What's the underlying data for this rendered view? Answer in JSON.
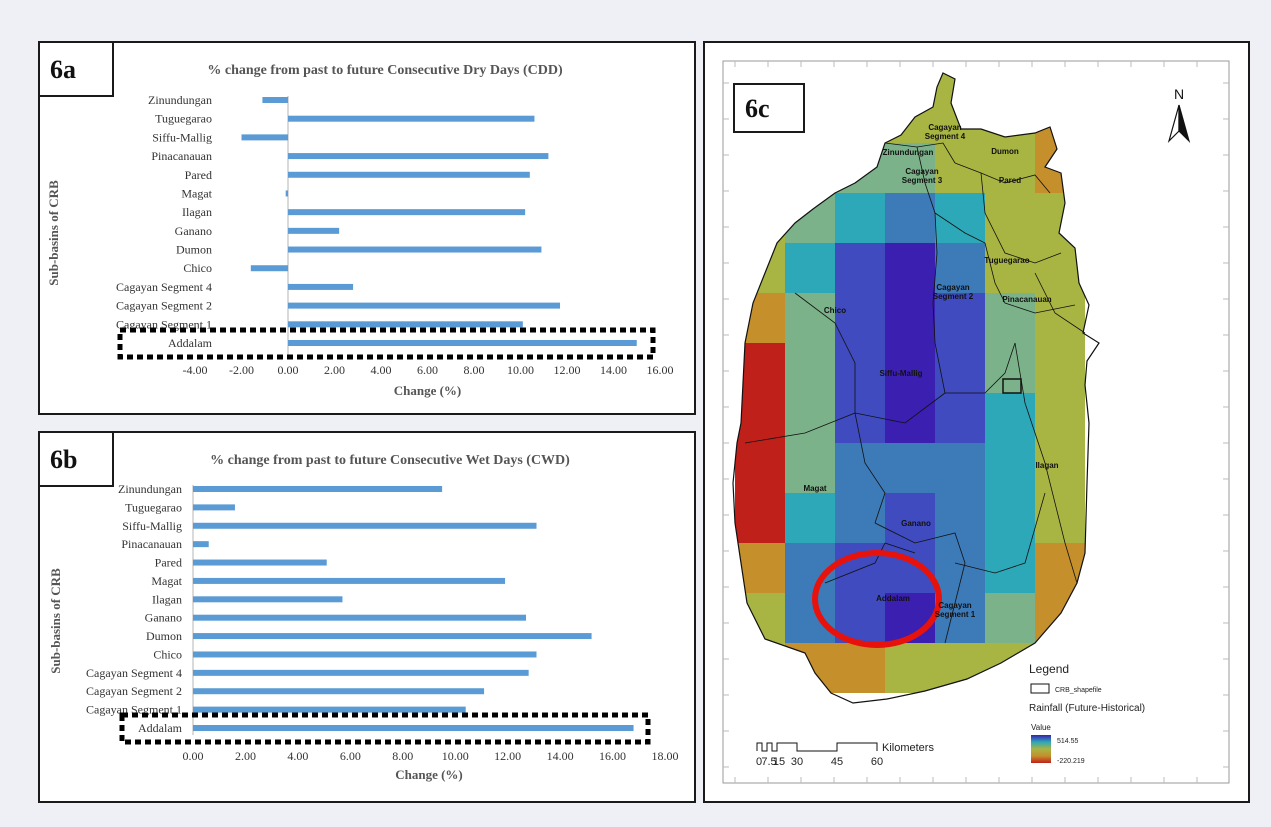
{
  "panels": {
    "a": {
      "label": "6a"
    },
    "b": {
      "label": "6b"
    },
    "c": {
      "label": "6c"
    }
  },
  "chart_data": [
    {
      "id": "6a",
      "type": "bar",
      "orientation": "horizontal",
      "title": "% change from past to future  Consecutive Dry Days (CDD)",
      "xlabel": "Change (%)",
      "ylabel": "Sub-basins of CRB",
      "xlim": [
        -4,
        16
      ],
      "xticks": [
        "-4.00",
        "-2.00",
        "0.00",
        "2.00",
        "4.00",
        "6.00",
        "8.00",
        "10.00",
        "12.00",
        "14.00",
        "16.00"
      ],
      "categories": [
        "Zinundungan",
        "Tuguegarao",
        "Siffu-Mallig",
        "Pinacanauan",
        "Pared",
        "Magat",
        "Ilagan",
        "Ganano",
        "Dumon",
        "Chico",
        "Cagayan Segment 4",
        "Cagayan Segment 2",
        "Cagayan Segment 1",
        "Addalam"
      ],
      "values": [
        -1.1,
        10.6,
        -2.0,
        11.2,
        10.4,
        -0.1,
        10.2,
        2.2,
        10.9,
        -1.6,
        2.8,
        11.7,
        10.1,
        15.0
      ],
      "bar_color": "#5b9bd5",
      "highlight": "Addalam"
    },
    {
      "id": "6b",
      "type": "bar",
      "orientation": "horizontal",
      "title": "% change from past to future Consecutive Wet Days (CWD)",
      "xlabel": "Change (%)",
      "ylabel": "Sub-basins of CRB",
      "xlim": [
        0,
        18
      ],
      "xticks": [
        "0.00",
        "2.00",
        "4.00",
        "6.00",
        "8.00",
        "10.00",
        "12.00",
        "14.00",
        "16.00",
        "18.00"
      ],
      "categories": [
        "Zinundungan",
        "Tuguegarao",
        "Siffu-Mallig",
        "Pinacanauan",
        "Pared",
        "Magat",
        "Ilagan",
        "Ganano",
        "Dumon",
        "Chico",
        "Cagayan Segment 4",
        "Cagayan Segment 2",
        "Cagayan Segment 1",
        "Addalam"
      ],
      "values": [
        9.5,
        1.6,
        13.1,
        0.6,
        5.1,
        11.9,
        5.7,
        12.7,
        15.2,
        13.1,
        12.8,
        11.1,
        10.4,
        16.8
      ],
      "bar_color": "#5b9bd5",
      "highlight": "Addalam"
    }
  ],
  "map": {
    "north": "N",
    "labels": [
      "Cagayan Segment 4",
      "Zinundungan",
      "Dumon",
      "Cagayan Segment 3",
      "Pared",
      "Tuguegarao",
      "Cagayan Segment 2",
      "Pinacanauan",
      "Chico",
      "Siffu-Mallig",
      "Ilagan",
      "Magat",
      "Ganano",
      "Addalam",
      "Cagayan Segment 1"
    ],
    "legend": {
      "title": "Legend",
      "shapefile": "CRB_shapefile",
      "raster": "Rainfall (Future-Historical)",
      "value_label": "Value",
      "max": "514.55",
      "min": "-220.219"
    },
    "scale": {
      "ticks": [
        "0",
        "7.5",
        "15",
        "30",
        "45",
        "60"
      ],
      "unit": "Kilometers"
    },
    "colors": {
      "high": "#3b1fb0",
      "low": "#c0201a",
      "highlight": "#e8120c"
    }
  }
}
